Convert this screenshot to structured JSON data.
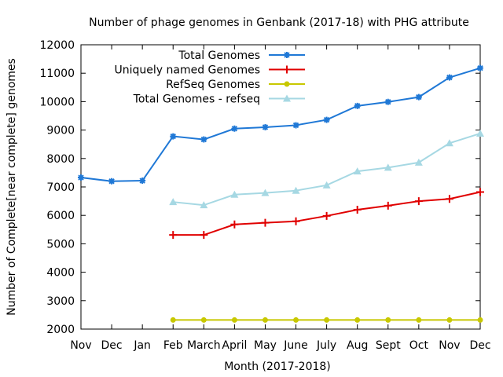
{
  "chart_data": {
    "type": "line",
    "title": "Number of phage genomes in Genbank (2017-18) with PHG attribute",
    "xlabel": "Month (2017-2018)",
    "ylabel": "Number of Complete[near complete] genomes",
    "categories": [
      "Nov",
      "Dec",
      "Jan",
      "Feb",
      "March",
      "April",
      "May",
      "June",
      "July",
      "Aug",
      "Sept",
      "Oct",
      "Nov",
      "Dec"
    ],
    "yticks": [
      "2000",
      "3000",
      "4000",
      "5000",
      "6000",
      "7000",
      "8000",
      "9000",
      "10000",
      "11000",
      "12000"
    ],
    "ylim": [
      2000,
      12000
    ],
    "grid": false,
    "legend_position": "top-center",
    "series": [
      {
        "name": "Total Genomes",
        "color": "#1f78d6",
        "marker": "star",
        "values": [
          7330,
          7200,
          7220,
          8780,
          8670,
          9050,
          9100,
          9170,
          9360,
          9850,
          9990,
          10160,
          10850,
          11180
        ]
      },
      {
        "name": "Uniquely named Genomes",
        "color": "#e00000",
        "marker": "plus",
        "values": [
          null,
          null,
          null,
          5310,
          5310,
          5680,
          5740,
          5790,
          5980,
          6200,
          6340,
          6500,
          6580,
          6820
        ]
      },
      {
        "name": "RefSeq Genomes",
        "color": "#c8c800",
        "marker": "circle",
        "values": [
          null,
          null,
          null,
          2320,
          2320,
          2320,
          2320,
          2320,
          2320,
          2320,
          2320,
          2320,
          2320,
          2320
        ]
      },
      {
        "name": "Total Genomes - refseq",
        "color": "#a6d8e3",
        "marker": "triangle",
        "values": [
          null,
          null,
          null,
          6470,
          6360,
          6730,
          6790,
          6870,
          7060,
          7550,
          7680,
          7860,
          8540,
          8880
        ]
      }
    ]
  }
}
